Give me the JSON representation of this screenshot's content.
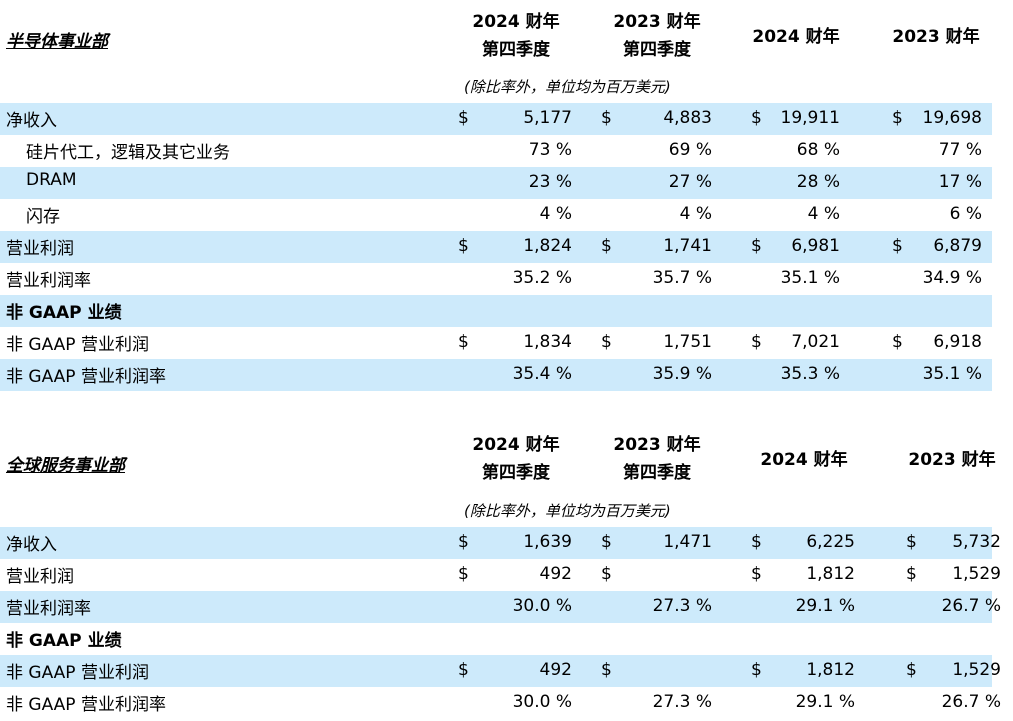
{
  "sections": [
    {
      "title": "半导体事业部",
      "headers": [
        [
          "2024 财年",
          "第四季度"
        ],
        [
          "2023 财年",
          "第四季度"
        ],
        [
          "2024 财年"
        ],
        [
          "2023 财年"
        ]
      ],
      "note": "(除比率外，单位均为百万美元)",
      "rows": [
        {
          "label": "净收入",
          "indent": false,
          "bold": false,
          "band": true,
          "cells": [
            [
              "$",
              "5,177"
            ],
            [
              "$",
              "4,883"
            ],
            [
              "$",
              "19,911"
            ],
            [
              "$",
              "19,698"
            ]
          ]
        },
        {
          "label": "硅片代工，逻辑及其它业务",
          "indent": true,
          "bold": false,
          "band": false,
          "cells": [
            [
              "",
              "73 %"
            ],
            [
              "",
              "69 %"
            ],
            [
              "",
              "68 %"
            ],
            [
              "",
              "77 %"
            ]
          ]
        },
        {
          "label": "DRAM",
          "indent": true,
          "bold": false,
          "band": true,
          "cells": [
            [
              "",
              "23 %"
            ],
            [
              "",
              "27 %"
            ],
            [
              "",
              "28 %"
            ],
            [
              "",
              "17 %"
            ]
          ]
        },
        {
          "label": "闪存",
          "indent": true,
          "bold": false,
          "band": false,
          "cells": [
            [
              "",
              "4 %"
            ],
            [
              "",
              "4 %"
            ],
            [
              "",
              "4 %"
            ],
            [
              "",
              "6 %"
            ]
          ]
        },
        {
          "label": "营业利润",
          "indent": false,
          "bold": false,
          "band": true,
          "cells": [
            [
              "$",
              "1,824"
            ],
            [
              "$",
              "1,741"
            ],
            [
              "$",
              "6,981"
            ],
            [
              "$",
              "6,879"
            ]
          ]
        },
        {
          "label": "营业利润率",
          "indent": false,
          "bold": false,
          "band": false,
          "cells": [
            [
              "",
              "35.2 %"
            ],
            [
              "",
              "35.7 %"
            ],
            [
              "",
              "35.1 %"
            ],
            [
              "",
              "34.9 %"
            ]
          ]
        },
        {
          "label": "非 GAAP 业绩",
          "indent": false,
          "bold": true,
          "band": true,
          "cells": [
            [
              "",
              ""
            ],
            [
              "",
              ""
            ],
            [
              "",
              ""
            ],
            [
              "",
              ""
            ]
          ]
        },
        {
          "label": "非 GAAP 营业利润",
          "indent": false,
          "bold": false,
          "band": false,
          "cells": [
            [
              "$",
              "1,834"
            ],
            [
              "$",
              "1,751"
            ],
            [
              "$",
              "7,021"
            ],
            [
              "$",
              "6,918"
            ]
          ]
        },
        {
          "label": "非 GAAP 营业利润率",
          "indent": false,
          "bold": false,
          "band": true,
          "cells": [
            [
              "",
              "35.4 %"
            ],
            [
              "",
              "35.9 %"
            ],
            [
              "",
              "35.3 %"
            ],
            [
              "",
              "35.1 %"
            ]
          ]
        }
      ]
    },
    {
      "title": "全球服务事业部",
      "headers": [
        [
          "2024 财年",
          "第四季度"
        ],
        [
          "2023 财年",
          "第四季度"
        ],
        [
          "2024 财年"
        ],
        [
          "2023 财年"
        ]
      ],
      "note": "(除比率外，单位均为百万美元)",
      "rows": [
        {
          "label": "净收入",
          "indent": false,
          "bold": false,
          "band": true,
          "cells": [
            [
              "$",
              "1,639"
            ],
            [
              "$",
              "1,471"
            ],
            [
              "$",
              "6,225"
            ],
            [
              "$",
              "5,732"
            ]
          ]
        },
        {
          "label": "营业利润",
          "indent": false,
          "bold": false,
          "band": false,
          "cells": [
            [
              "$",
              "492"
            ],
            [
              "$",
              ""
            ],
            [
              "$",
              "1,812"
            ],
            [
              "$",
              "1,529"
            ]
          ]
        },
        {
          "label": "营业利润率",
          "indent": false,
          "bold": false,
          "band": true,
          "cells": [
            [
              "",
              "30.0 %"
            ],
            [
              "",
              "27.3 %"
            ],
            [
              "",
              "29.1 %"
            ],
            [
              "",
              "26.7 %"
            ]
          ]
        },
        {
          "label": "非 GAAP 业绩",
          "indent": false,
          "bold": true,
          "band": false,
          "cells": [
            [
              "",
              ""
            ],
            [
              "",
              ""
            ],
            [
              "",
              ""
            ],
            [
              "",
              ""
            ]
          ]
        },
        {
          "label": "非 GAAP 营业利润",
          "indent": false,
          "bold": false,
          "band": true,
          "cells": [
            [
              "$",
              "492"
            ],
            [
              "$",
              ""
            ],
            [
              "$",
              "1,812"
            ],
            [
              "$",
              "1,529"
            ]
          ]
        },
        {
          "label": "非 GAAP 营业利润率",
          "indent": false,
          "bold": false,
          "band": false,
          "cells": [
            [
              "",
              "30.0 %"
            ],
            [
              "",
              "27.3 %"
            ],
            [
              "",
              "29.1 %"
            ],
            [
              "",
              "26.7 %"
            ]
          ]
        }
      ]
    }
  ],
  "colors": {
    "band": "#cdeafb",
    "text": "#000000"
  }
}
